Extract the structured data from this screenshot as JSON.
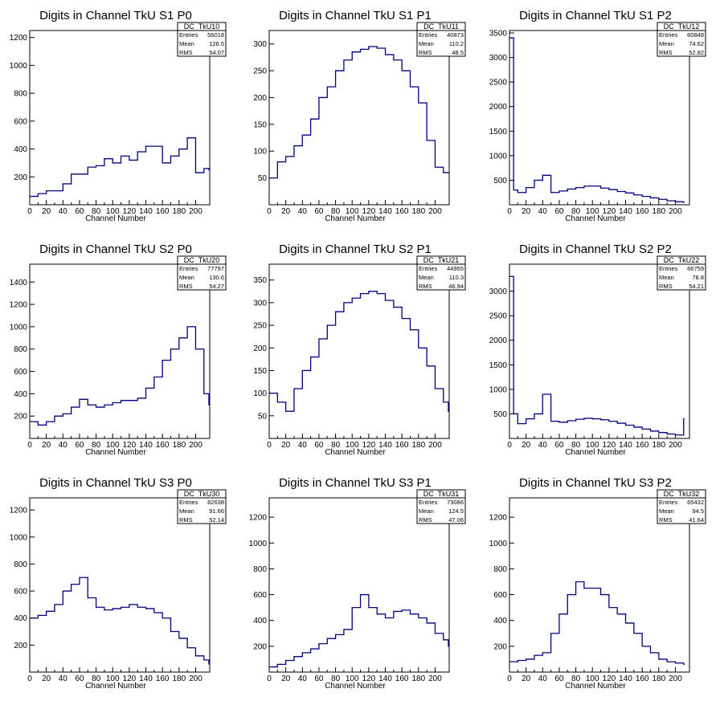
{
  "chart_data": [
    {
      "type": "histogram",
      "title": "Digits in Channel TkU S1 P0",
      "xlabel": "Channel Number",
      "ylabel": "",
      "xlim": [
        0,
        217
      ],
      "ylim": [
        0,
        1250
      ],
      "xticks": [
        0,
        20,
        40,
        60,
        80,
        100,
        120,
        140,
        160,
        180,
        200
      ],
      "yticks": [
        200,
        400,
        600,
        800,
        1000,
        1200
      ],
      "stats": {
        "name": "DC_TkU10",
        "entries": "56018",
        "mean": "126.5",
        "rms": "54.07"
      },
      "series": [
        {
          "x": [
            0,
            10,
            20,
            30,
            40,
            50,
            60,
            70,
            80,
            90,
            100,
            110,
            120,
            130,
            140,
            150,
            160,
            170,
            180,
            190,
            200,
            210,
            216
          ],
          "values": [
            60,
            80,
            100,
            100,
            150,
            220,
            220,
            270,
            280,
            330,
            300,
            350,
            320,
            380,
            420,
            420,
            300,
            350,
            400,
            480,
            230,
            260,
            250
          ]
        }
      ]
    },
    {
      "type": "histogram",
      "title": "Digits in Channel TkU S1 P1",
      "xlabel": "Channel Number",
      "ylabel": "",
      "xlim": [
        0,
        217
      ],
      "ylim": [
        0,
        325
      ],
      "xticks": [
        0,
        20,
        40,
        60,
        80,
        100,
        120,
        140,
        160,
        180,
        200
      ],
      "yticks": [
        50,
        100,
        150,
        200,
        250,
        300
      ],
      "stats": {
        "name": "DC_TkU11",
        "entries": "40873",
        "mean": "110.2",
        "rms": "48.5"
      },
      "series": [
        {
          "x": [
            0,
            10,
            20,
            30,
            40,
            50,
            60,
            70,
            80,
            90,
            100,
            110,
            120,
            130,
            140,
            150,
            160,
            170,
            180,
            190,
            200,
            210,
            216
          ],
          "values": [
            50,
            80,
            90,
            110,
            130,
            160,
            200,
            220,
            250,
            270,
            285,
            290,
            295,
            292,
            280,
            270,
            250,
            220,
            190,
            120,
            70,
            60,
            60
          ]
        }
      ]
    },
    {
      "type": "histogram",
      "title": "Digits in Channel TkU S1 P2",
      "xlabel": "Channel Number",
      "ylabel": "",
      "xlim": [
        0,
        217
      ],
      "ylim": [
        0,
        3550
      ],
      "xticks": [
        0,
        20,
        40,
        60,
        80,
        100,
        120,
        140,
        160,
        180,
        200
      ],
      "yticks": [
        500,
        1000,
        1500,
        2000,
        2500,
        3000,
        3500
      ],
      "stats": {
        "name": "DC_TkU12",
        "entries": "60848",
        "mean": "74.62",
        "rms": "52.82"
      },
      "series": [
        {
          "x": [
            0,
            5,
            10,
            20,
            30,
            40,
            50,
            60,
            70,
            80,
            90,
            100,
            110,
            120,
            130,
            140,
            150,
            160,
            170,
            180,
            190,
            200,
            210
          ],
          "values": [
            3400,
            300,
            250,
            350,
            500,
            600,
            250,
            280,
            320,
            350,
            380,
            380,
            340,
            310,
            270,
            240,
            200,
            170,
            140,
            110,
            80,
            60,
            50
          ]
        }
      ]
    },
    {
      "type": "histogram",
      "title": "Digits in Channel TkU S2 P0",
      "xlabel": "Channel Number",
      "ylabel": "",
      "xlim": [
        0,
        217
      ],
      "ylim": [
        0,
        1560
      ],
      "xticks": [
        0,
        20,
        40,
        60,
        80,
        100,
        120,
        140,
        160,
        180,
        200
      ],
      "yticks": [
        200,
        400,
        600,
        800,
        1000,
        1200,
        1400
      ],
      "stats": {
        "name": "DC_TkU20",
        "entries": "77797",
        "mean": "130.6",
        "rms": "54.27"
      },
      "series": [
        {
          "x": [
            0,
            10,
            20,
            30,
            40,
            50,
            60,
            70,
            80,
            90,
            100,
            110,
            120,
            130,
            140,
            150,
            160,
            170,
            180,
            190,
            200,
            210,
            216
          ],
          "values": [
            150,
            120,
            150,
            200,
            220,
            280,
            350,
            300,
            280,
            300,
            320,
            340,
            340,
            360,
            450,
            550,
            700,
            800,
            900,
            1000,
            800,
            400,
            300
          ]
        }
      ]
    },
    {
      "type": "histogram",
      "title": "Digits in Channel TkU S2 P1",
      "xlabel": "Channel Number",
      "ylabel": "",
      "xlim": [
        0,
        217
      ],
      "ylim": [
        0,
        385
      ],
      "xticks": [
        0,
        20,
        40,
        60,
        80,
        100,
        120,
        140,
        160,
        180,
        200
      ],
      "yticks": [
        50,
        100,
        150,
        200,
        250,
        300,
        350
      ],
      "stats": {
        "name": "DC_TkU21",
        "entries": "44955",
        "mean": "110.3",
        "rms": "46.94"
      },
      "series": [
        {
          "x": [
            0,
            10,
            20,
            30,
            40,
            50,
            60,
            70,
            80,
            90,
            100,
            110,
            120,
            130,
            140,
            150,
            160,
            170,
            180,
            190,
            200,
            210,
            216
          ],
          "values": [
            100,
            80,
            60,
            110,
            150,
            180,
            220,
            250,
            280,
            300,
            310,
            320,
            325,
            320,
            305,
            290,
            265,
            240,
            200,
            160,
            110,
            80,
            60
          ]
        }
      ]
    },
    {
      "type": "histogram",
      "title": "Digits in Channel TkU S2 P2",
      "xlabel": "Channel Number",
      "ylabel": "",
      "xlim": [
        0,
        217
      ],
      "ylim": [
        0,
        3550
      ],
      "xticks": [
        0,
        20,
        40,
        60,
        80,
        100,
        120,
        140,
        160,
        180,
        200
      ],
      "yticks": [
        500,
        1000,
        1500,
        2000,
        2500,
        3000
      ],
      "stats": {
        "name": "DC_TkU22",
        "entries": "66759",
        "mean": "78.8",
        "rms": "54.21"
      },
      "series": [
        {
          "x": [
            0,
            5,
            10,
            20,
            30,
            40,
            50,
            60,
            70,
            80,
            90,
            100,
            110,
            120,
            130,
            140,
            150,
            160,
            170,
            180,
            190,
            200,
            210
          ],
          "values": [
            3300,
            500,
            300,
            400,
            500,
            900,
            350,
            330,
            360,
            390,
            410,
            400,
            380,
            350,
            310,
            270,
            230,
            190,
            150,
            120,
            90,
            70,
            400
          ]
        }
      ]
    },
    {
      "type": "histogram",
      "title": "Digits in Channel TkU S3 P0",
      "xlabel": "Channel Number",
      "ylabel": "",
      "xlim": [
        0,
        217
      ],
      "ylim": [
        0,
        1290
      ],
      "xticks": [
        0,
        20,
        40,
        60,
        80,
        100,
        120,
        140,
        160,
        180,
        200
      ],
      "yticks": [
        200,
        400,
        600,
        800,
        1000,
        1200
      ],
      "stats": {
        "name": "DC_TkU30",
        "entries": "82638",
        "mean": "91.66",
        "rms": "52.14"
      },
      "series": [
        {
          "x": [
            0,
            10,
            20,
            30,
            40,
            50,
            60,
            70,
            80,
            90,
            100,
            110,
            120,
            130,
            140,
            150,
            160,
            170,
            180,
            190,
            200,
            210,
            216
          ],
          "values": [
            400,
            420,
            450,
            500,
            600,
            650,
            700,
            550,
            480,
            460,
            470,
            480,
            500,
            480,
            470,
            440,
            400,
            300,
            250,
            180,
            120,
            90,
            60
          ]
        }
      ]
    },
    {
      "type": "histogram",
      "title": "Digits in Channel TkU S3 P1",
      "xlabel": "Channel Number",
      "ylabel": "",
      "xlim": [
        0,
        217
      ],
      "ylim": [
        0,
        1350
      ],
      "xticks": [
        0,
        20,
        40,
        60,
        80,
        100,
        120,
        140,
        160,
        180,
        200
      ],
      "yticks": [
        200,
        400,
        600,
        800,
        1000,
        1200
      ],
      "stats": {
        "name": "DC_TkU31",
        "entries": "73086",
        "mean": "124.5",
        "rms": "47.06"
      },
      "series": [
        {
          "x": [
            0,
            10,
            20,
            30,
            40,
            50,
            60,
            70,
            80,
            90,
            100,
            110,
            120,
            130,
            140,
            150,
            160,
            170,
            180,
            190,
            200,
            210,
            216
          ],
          "values": [
            40,
            60,
            90,
            120,
            150,
            180,
            220,
            260,
            290,
            330,
            500,
            600,
            500,
            450,
            420,
            470,
            480,
            450,
            420,
            380,
            300,
            250,
            200
          ]
        }
      ]
    },
    {
      "type": "histogram",
      "title": "Digits in Channel TkU S3 P2",
      "xlabel": "Channel Number",
      "ylabel": "",
      "xlim": [
        0,
        217
      ],
      "ylim": [
        0,
        1350
      ],
      "xticks": [
        0,
        20,
        40,
        60,
        80,
        100,
        120,
        140,
        160,
        180,
        200
      ],
      "yticks": [
        200,
        400,
        600,
        800,
        1000,
        1200
      ],
      "stats": {
        "name": "DC_TkU32",
        "entries": "65432",
        "mean": "94.5",
        "rms": "41.64"
      },
      "series": [
        {
          "x": [
            0,
            10,
            20,
            30,
            40,
            50,
            60,
            70,
            80,
            90,
            100,
            110,
            120,
            130,
            140,
            150,
            160,
            170,
            180,
            190,
            200,
            210
          ],
          "values": [
            80,
            90,
            100,
            130,
            150,
            300,
            450,
            600,
            700,
            650,
            650,
            600,
            500,
            450,
            380,
            300,
            200,
            150,
            100,
            80,
            70,
            60
          ]
        }
      ]
    }
  ],
  "stat_labels": {
    "entries": "Entries",
    "mean": "Mean",
    "rms": "RMS"
  },
  "colors": {
    "line": "#000080",
    "axis": "#000000",
    "background": "#ffffff"
  }
}
